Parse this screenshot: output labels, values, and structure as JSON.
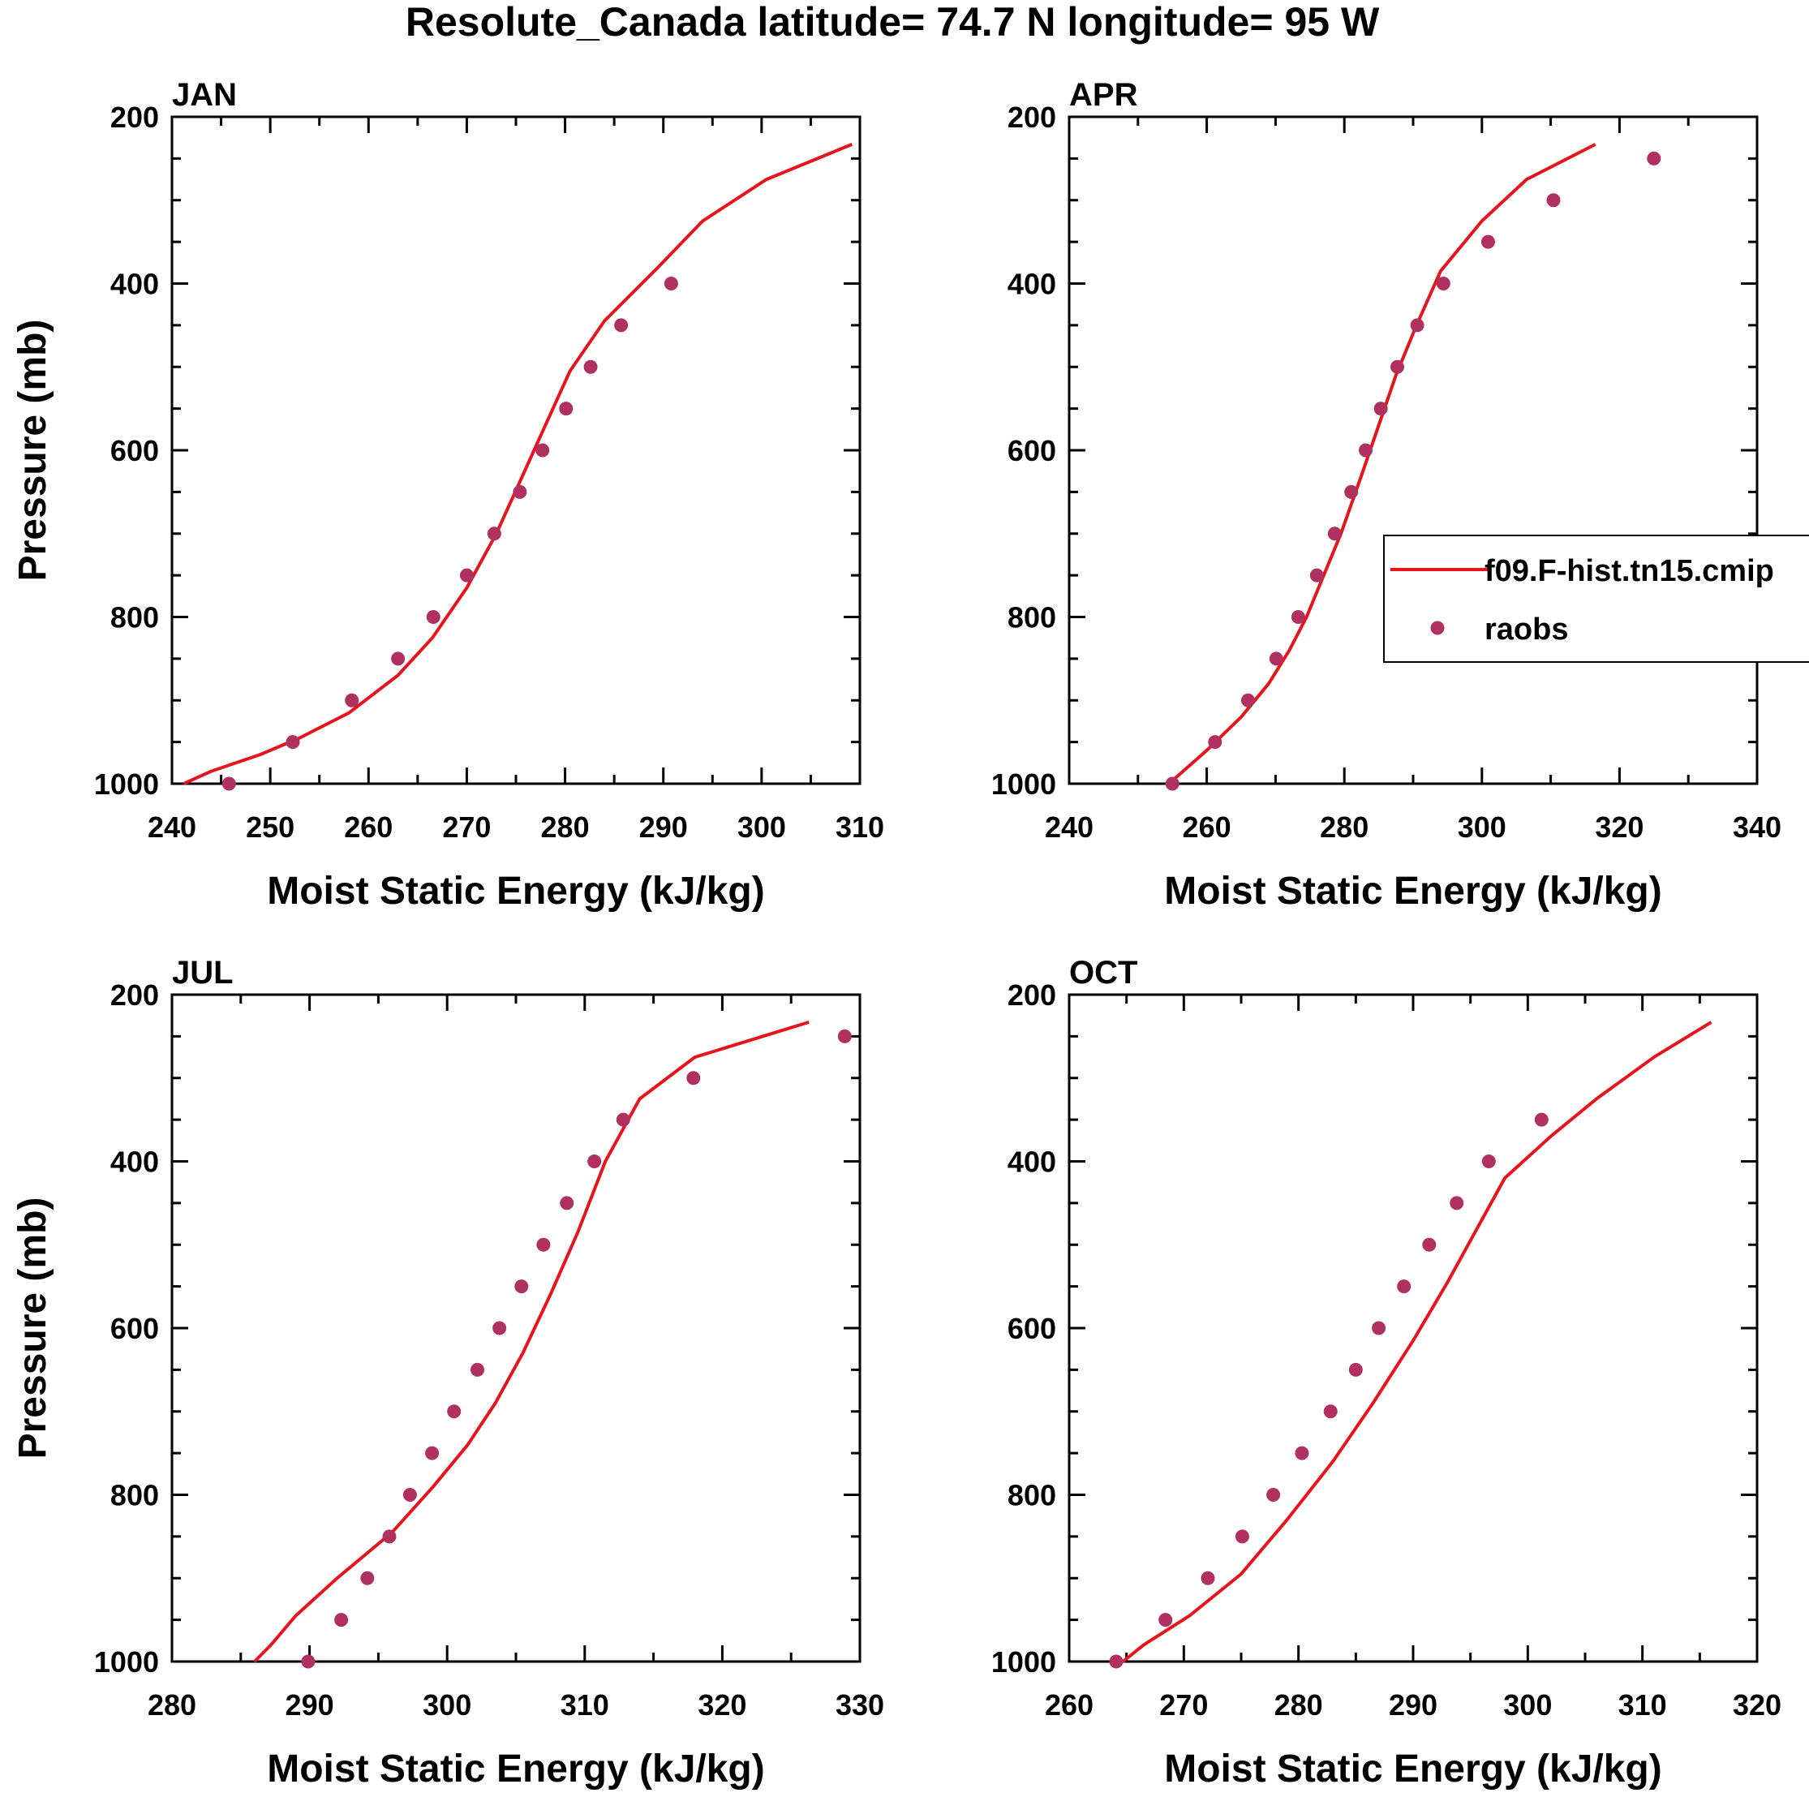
{
  "figure": {
    "title": "Resolute_Canada  latitude= 74.7 N longitude= 95 W"
  },
  "colors": {
    "model_line": "#e8141c",
    "obs_dot": "#b03060",
    "axis": "#000000"
  },
  "legend": {
    "placement": "right, inside APR panel",
    "entries": [
      {
        "label": "f09.F-hist.tn15.cmip",
        "kind": "line",
        "color": "#e8141c"
      },
      {
        "label": "raobs",
        "kind": "marker",
        "color": "#b03060"
      }
    ]
  },
  "chart_data": [
    {
      "type": "line",
      "panel_label": "JAN",
      "xlabel": "Moist Static Energy (kJ/kg)",
      "ylabel": "Pressure (mb)",
      "xlim": [
        240,
        310
      ],
      "ylim": [
        1000,
        200
      ],
      "y_inverted": true,
      "xticks": [
        240,
        250,
        260,
        270,
        280,
        290,
        300,
        310
      ],
      "yticks": [
        200,
        400,
        600,
        800,
        1000
      ],
      "series": [
        {
          "name": "f09.F-hist.tn15.cmip",
          "style": "line",
          "points": [
            [
              241.2,
              1000
            ],
            [
              244,
              985
            ],
            [
              249,
              965
            ],
            [
              253,
              945
            ],
            [
              258,
              915
            ],
            [
              263,
              870
            ],
            [
              266.5,
              825
            ],
            [
              270,
              765
            ],
            [
              273,
              700
            ],
            [
              275.5,
              635
            ],
            [
              278,
              570
            ],
            [
              280.5,
              505
            ],
            [
              284,
              445
            ],
            [
              289.5,
              380
            ],
            [
              294,
              325
            ],
            [
              300.5,
              275
            ],
            [
              309.2,
              233
            ]
          ]
        },
        {
          "name": "raobs",
          "style": "marker",
          "points": [
            [
              245.8,
              1000
            ],
            [
              252.3,
              950
            ],
            [
              258.3,
              900
            ],
            [
              263,
              850
            ],
            [
              266.6,
              800
            ],
            [
              270,
              750
            ],
            [
              272.8,
              700
            ],
            [
              275.4,
              650
            ],
            [
              277.7,
              600
            ],
            [
              280.1,
              550
            ],
            [
              282.6,
              500
            ],
            [
              285.7,
              450
            ],
            [
              290.8,
              400
            ]
          ]
        }
      ]
    },
    {
      "type": "line",
      "panel_label": "APR",
      "xlabel": "Moist Static Energy (kJ/kg)",
      "ylabel": "",
      "xlim": [
        240,
        340
      ],
      "ylim": [
        1000,
        200
      ],
      "y_inverted": true,
      "xticks": [
        240,
        260,
        280,
        300,
        320,
        340
      ],
      "yticks": [
        200,
        400,
        600,
        800,
        1000
      ],
      "series": [
        {
          "name": "f09.F-hist.tn15.cmip",
          "style": "line",
          "points": [
            [
              254.5,
              1000
            ],
            [
              260,
              960
            ],
            [
              265,
              920
            ],
            [
              269,
              880
            ],
            [
              272,
              840
            ],
            [
              274.5,
              800
            ],
            [
              277,
              750
            ],
            [
              279.5,
              700
            ],
            [
              282.5,
              630
            ],
            [
              285,
              570
            ],
            [
              287.5,
              510
            ],
            [
              290.5,
              450
            ],
            [
              294,
              385
            ],
            [
              300,
              325
            ],
            [
              306.5,
              275
            ],
            [
              316.5,
              233
            ]
          ]
        },
        {
          "name": "raobs",
          "style": "marker",
          "points": [
            [
              255,
              1000
            ],
            [
              261.2,
              950
            ],
            [
              266,
              900
            ],
            [
              270.1,
              850
            ],
            [
              273.3,
              800
            ],
            [
              276,
              750
            ],
            [
              278.6,
              700
            ],
            [
              281,
              650
            ],
            [
              283.1,
              600
            ],
            [
              285.3,
              550
            ],
            [
              287.7,
              500
            ],
            [
              290.6,
              450
            ],
            [
              294.4,
              400
            ],
            [
              300.9,
              350
            ],
            [
              310.4,
              300
            ],
            [
              325,
              250
            ]
          ]
        }
      ]
    },
    {
      "type": "line",
      "panel_label": "JUL",
      "xlabel": "Moist Static Energy (kJ/kg)",
      "ylabel": "Pressure (mb)",
      "xlim": [
        280,
        330
      ],
      "ylim": [
        1000,
        200
      ],
      "y_inverted": true,
      "xticks": [
        280,
        290,
        300,
        310,
        320,
        330
      ],
      "yticks": [
        200,
        400,
        600,
        800,
        1000
      ],
      "series": [
        {
          "name": "f09.F-hist.tn15.cmip",
          "style": "line",
          "points": [
            [
              286,
              1000
            ],
            [
              287.2,
              980
            ],
            [
              289,
              945
            ],
            [
              292,
              900
            ],
            [
              296,
              845
            ],
            [
              299,
              790
            ],
            [
              301.5,
              740
            ],
            [
              303.5,
              690
            ],
            [
              305.5,
              630
            ],
            [
              307.5,
              560
            ],
            [
              309.5,
              485
            ],
            [
              311.5,
              400
            ],
            [
              314,
              325
            ],
            [
              318,
              275
            ],
            [
              326.3,
              233
            ]
          ]
        },
        {
          "name": "raobs",
          "style": "marker",
          "points": [
            [
              289.9,
              1000
            ],
            [
              292.3,
              950
            ],
            [
              294.2,
              900
            ],
            [
              295.8,
              850
            ],
            [
              297.3,
              800
            ],
            [
              298.9,
              750
            ],
            [
              300.5,
              700
            ],
            [
              302.2,
              650
            ],
            [
              303.8,
              600
            ],
            [
              305.4,
              550
            ],
            [
              307,
              500
            ],
            [
              308.7,
              450
            ],
            [
              310.7,
              400
            ],
            [
              312.8,
              350
            ],
            [
              317.9,
              300
            ],
            [
              328.9,
              250
            ]
          ]
        }
      ]
    },
    {
      "type": "line",
      "panel_label": "OCT",
      "xlabel": "Moist Static Energy (kJ/kg)",
      "ylabel": "",
      "xlim": [
        260,
        320
      ],
      "ylim": [
        1000,
        200
      ],
      "y_inverted": true,
      "xticks": [
        260,
        270,
        280,
        290,
        300,
        310,
        320
      ],
      "yticks": [
        200,
        400,
        600,
        800,
        1000
      ],
      "series": [
        {
          "name": "f09.F-hist.tn15.cmip",
          "style": "line",
          "points": [
            [
              264.7,
              1000
            ],
            [
              266.5,
              980
            ],
            [
              270.5,
              945
            ],
            [
              275,
              895
            ],
            [
              279,
              830
            ],
            [
              283,
              760
            ],
            [
              286.5,
              690
            ],
            [
              290,
              615
            ],
            [
              293,
              545
            ],
            [
              296,
              470
            ],
            [
              298,
              420
            ],
            [
              302,
              370
            ],
            [
              306,
              325
            ],
            [
              311,
              275
            ],
            [
              316,
              233
            ]
          ]
        },
        {
          "name": "raobs",
          "style": "marker",
          "points": [
            [
              264.1,
              1000
            ],
            [
              268.4,
              950
            ],
            [
              272.1,
              900
            ],
            [
              275.1,
              850
            ],
            [
              277.8,
              800
            ],
            [
              280.3,
              750
            ],
            [
              282.8,
              700
            ],
            [
              285,
              650
            ],
            [
              287,
              600
            ],
            [
              289.2,
              550
            ],
            [
              291.4,
              500
            ],
            [
              293.8,
              450
            ],
            [
              296.6,
              400
            ],
            [
              301.2,
              350
            ]
          ]
        }
      ]
    }
  ]
}
